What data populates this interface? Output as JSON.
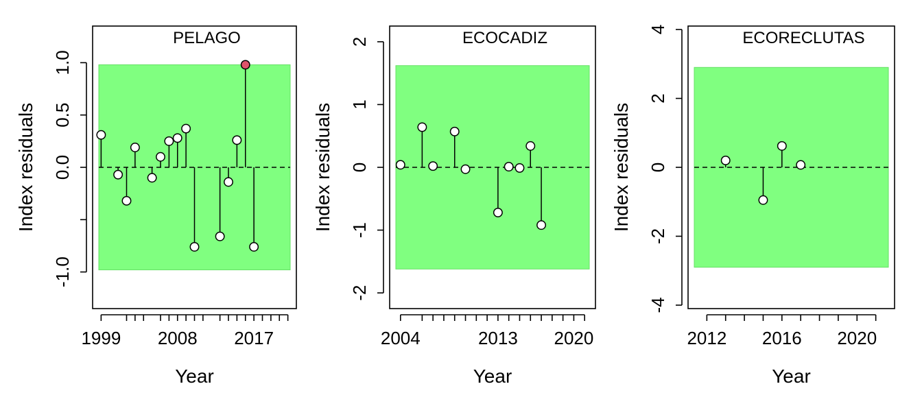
{
  "chart_data": [
    {
      "type": "scatter",
      "title": "PELAGO",
      "xlabel": "Year",
      "ylabel": "Index residuals",
      "xlim": [
        1998,
        2022
      ],
      "ylim": [
        -1.35,
        1.35
      ],
      "x_ticks": [
        1999,
        2002,
        2003,
        2004,
        2006,
        2007,
        2008,
        2009,
        2010,
        2011,
        2013,
        2014,
        2015,
        2016,
        2017,
        2018,
        2019,
        2020,
        2021
      ],
      "x_tick_labels": [
        {
          "value": 1999,
          "label": "1999"
        },
        {
          "value": 2008,
          "label": "2008"
        },
        {
          "value": 2017,
          "label": "2017"
        }
      ],
      "y_ticks": [
        {
          "value": -1.0,
          "label": "-1.0"
        },
        {
          "value": -0.5,
          "label": ""
        },
        {
          "value": 0.0,
          "label": "0.0"
        },
        {
          "value": 0.5,
          "label": "0.5"
        },
        {
          "value": 1.0,
          "label": "1.0"
        }
      ],
      "band": [
        -0.98,
        0.98
      ],
      "band_color": "#80FF80",
      "highlight_color": "#DF536B",
      "series": [
        {
          "x": [
            1999,
            2001,
            2002,
            2003,
            2005,
            2006,
            2007,
            2008,
            2009,
            2010,
            2013,
            2014,
            2015,
            2016,
            2017
          ],
          "y": [
            0.31,
            -0.07,
            -0.32,
            0.19,
            -0.1,
            0.1,
            0.25,
            0.28,
            0.37,
            -0.76,
            -0.66,
            -0.14,
            0.26,
            0.98,
            -0.76
          ],
          "highlight": [
            false,
            false,
            false,
            false,
            false,
            false,
            false,
            false,
            false,
            false,
            false,
            false,
            false,
            true,
            false
          ]
        }
      ]
    },
    {
      "type": "scatter",
      "title": "ECOCADIZ",
      "xlabel": "Year",
      "ylabel": "Index residuals",
      "xlim": [
        2003,
        2022
      ],
      "ylim": [
        -2.25,
        2.25
      ],
      "x_ticks": [
        2004,
        2006,
        2007,
        2008,
        2009,
        2010,
        2011,
        2012,
        2013,
        2014,
        2015,
        2016,
        2017,
        2018,
        2019,
        2020,
        2021
      ],
      "x_tick_labels": [
        {
          "value": 2004,
          "label": "2004"
        },
        {
          "value": 2013,
          "label": "2013"
        },
        {
          "value": 2020,
          "label": "2020"
        }
      ],
      "y_ticks": [
        {
          "value": -2,
          "label": "-2"
        },
        {
          "value": -1,
          "label": "-1"
        },
        {
          "value": 0,
          "label": "0"
        },
        {
          "value": 1,
          "label": "1"
        },
        {
          "value": 2,
          "label": "2"
        }
      ],
      "band": [
        -1.62,
        1.62
      ],
      "band_color": "#80FF80",
      "highlight_color": "#DF536B",
      "series": [
        {
          "x": [
            2004,
            2006,
            2007,
            2009,
            2010,
            2013,
            2014,
            2015,
            2016,
            2017
          ],
          "y": [
            0.04,
            0.64,
            0.02,
            0.57,
            -0.03,
            -0.72,
            0.01,
            -0.01,
            0.34,
            -0.92
          ],
          "highlight": [
            false,
            false,
            false,
            false,
            false,
            false,
            false,
            false,
            false,
            false
          ]
        }
      ]
    },
    {
      "type": "scatter",
      "title": "ECORECLUTAS",
      "xlabel": "Year",
      "ylabel": "Index residuals",
      "xlim": [
        2011,
        2022
      ],
      "ylim": [
        -4.1,
        4.1
      ],
      "x_ticks": [
        2012,
        2013,
        2014,
        2015,
        2016,
        2017,
        2018,
        2019,
        2020,
        2021
      ],
      "x_tick_labels": [
        {
          "value": 2012,
          "label": "2012"
        },
        {
          "value": 2016,
          "label": "2016"
        },
        {
          "value": 2020,
          "label": "2020"
        }
      ],
      "y_ticks": [
        {
          "value": -4,
          "label": "-4"
        },
        {
          "value": -2,
          "label": "-2"
        },
        {
          "value": 0,
          "label": "0"
        },
        {
          "value": 2,
          "label": "2"
        },
        {
          "value": 4,
          "label": "4"
        }
      ],
      "band": [
        -2.9,
        2.9
      ],
      "band_color": "#80FF80",
      "highlight_color": "#DF536B",
      "series": [
        {
          "x": [
            2013,
            2015,
            2016,
            2017
          ],
          "y": [
            0.2,
            -0.95,
            0.62,
            0.07
          ],
          "highlight": [
            false,
            false,
            false,
            false
          ]
        }
      ]
    }
  ]
}
